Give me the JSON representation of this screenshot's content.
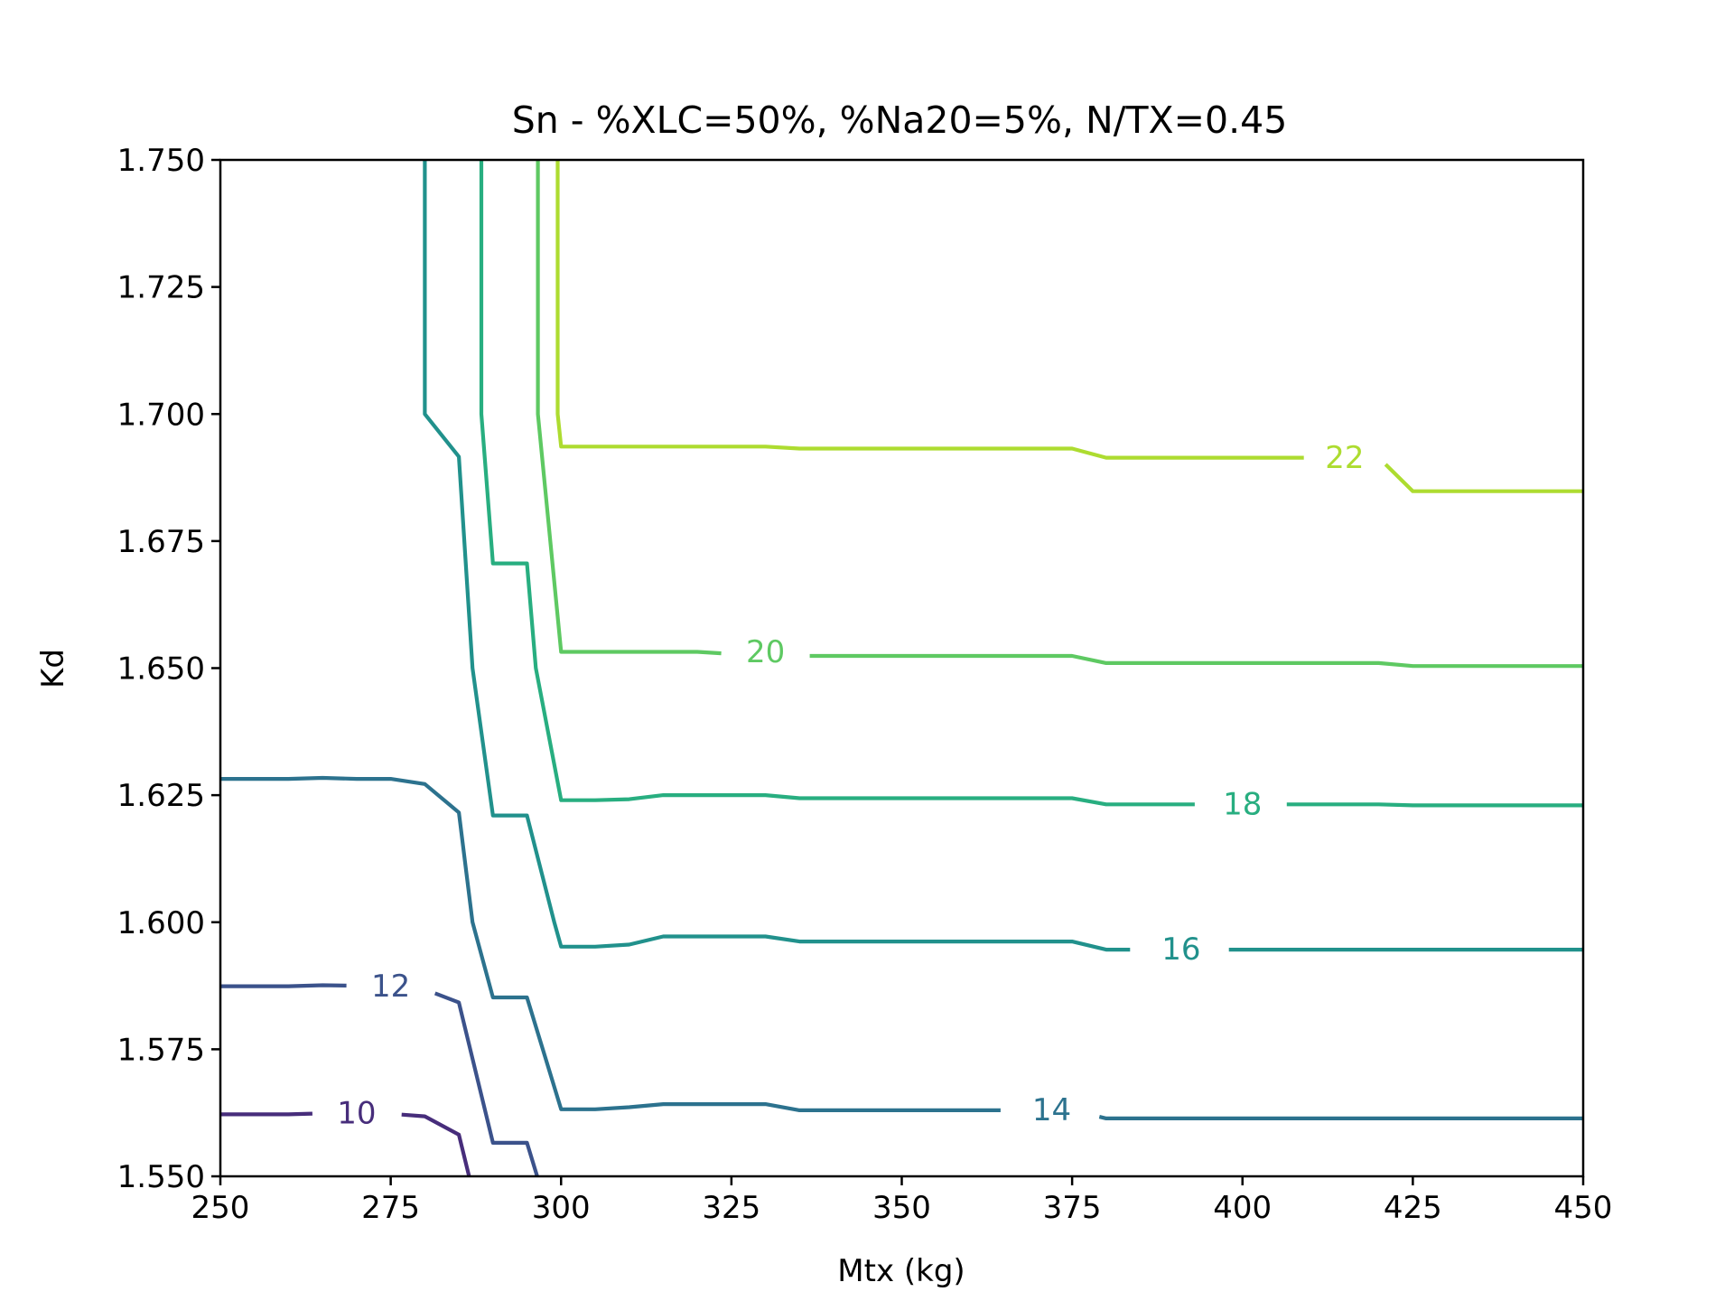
{
  "chart_data": {
    "type": "contour",
    "title": "Sn - %XLC=50%, %Na20=5%, N/TX=0.45",
    "xlabel": "Mtx (kg)",
    "ylabel": "Kd",
    "xlim": [
      250,
      450
    ],
    "ylim": [
      1.55,
      1.75
    ],
    "xticks": [
      "250",
      "275",
      "300",
      "325",
      "350",
      "375",
      "400",
      "425",
      "450"
    ],
    "yticks": [
      "1.550",
      "1.575",
      "1.600",
      "1.625",
      "1.650",
      "1.675",
      "1.700",
      "1.725",
      "1.750"
    ],
    "grid": false,
    "levels": [
      {
        "value": 10,
        "label": "10",
        "color": "#472d7b",
        "points": [
          [
            250,
            1.5622
          ],
          [
            260,
            1.5622
          ],
          [
            265,
            1.5624
          ],
          [
            270,
            1.5623
          ],
          [
            275,
            1.5623
          ],
          [
            280,
            1.5618
          ],
          [
            285,
            1.5582
          ],
          [
            286.5,
            1.55
          ]
        ],
        "label_pos": [
          270,
          1.5625
        ],
        "gaps": [
          [
            263.5,
            276.6
          ]
        ]
      },
      {
        "value": 12,
        "label": "12",
        "color": "#3b528b",
        "points": [
          [
            250,
            1.5874
          ],
          [
            260,
            1.5874
          ],
          [
            265,
            1.5876
          ],
          [
            270,
            1.5875
          ],
          [
            275,
            1.5875
          ],
          [
            280,
            1.5868
          ],
          [
            285,
            1.5842
          ],
          [
            290,
            1.5566
          ],
          [
            295,
            1.5566
          ],
          [
            296.5,
            1.55
          ]
        ],
        "label_pos": [
          275,
          1.5875
        ],
        "gaps": [
          [
            268.5,
            281.5
          ]
        ]
      },
      {
        "value": 14,
        "label": "14",
        "color": "#2c728e",
        "points": [
          [
            250,
            1.6282
          ],
          [
            260,
            1.6282
          ],
          [
            265,
            1.6284
          ],
          [
            270,
            1.6282
          ],
          [
            275,
            1.6282
          ],
          [
            280,
            1.6272
          ],
          [
            285,
            1.6216
          ],
          [
            287,
            1.6
          ],
          [
            290,
            1.5852
          ],
          [
            295,
            1.5852
          ],
          [
            300,
            1.5632
          ],
          [
            305,
            1.5632
          ],
          [
            310,
            1.5636
          ],
          [
            315,
            1.5642
          ],
          [
            320,
            1.5642
          ],
          [
            330,
            1.5642
          ],
          [
            335,
            1.563
          ],
          [
            375,
            1.563
          ],
          [
            380,
            1.5614
          ],
          [
            450,
            1.5614
          ]
        ],
        "label_pos": [
          372,
          1.5632
        ],
        "gaps": [
          [
            364.5,
            379
          ]
        ]
      },
      {
        "value": 16,
        "label": "16",
        "color": "#21918c",
        "points": [
          [
            280,
            1.75
          ],
          [
            280,
            1.7
          ],
          [
            285,
            1.6916
          ],
          [
            287,
            1.65
          ],
          [
            290,
            1.621
          ],
          [
            295,
            1.621
          ],
          [
            299,
            1.6
          ],
          [
            300,
            1.5952
          ],
          [
            305,
            1.5952
          ],
          [
            310,
            1.5956
          ],
          [
            315,
            1.5972
          ],
          [
            320,
            1.5972
          ],
          [
            330,
            1.5972
          ],
          [
            335,
            1.5962
          ],
          [
            375,
            1.5962
          ],
          [
            380,
            1.5946
          ],
          [
            450,
            1.5946
          ]
        ],
        "label_pos": [
          391,
          1.5948
        ],
        "gaps": [
          [
            383.5,
            398
          ]
        ]
      },
      {
        "value": 18,
        "label": "18",
        "color": "#28ae80",
        "points": [
          [
            288.3,
            1.75
          ],
          [
            288.3,
            1.7
          ],
          [
            290,
            1.6706
          ],
          [
            295,
            1.6706
          ],
          [
            296.3,
            1.65
          ],
          [
            300,
            1.624
          ],
          [
            305,
            1.624
          ],
          [
            310,
            1.6242
          ],
          [
            315,
            1.625
          ],
          [
            330,
            1.625
          ],
          [
            335,
            1.6244
          ],
          [
            375,
            1.6244
          ],
          [
            380,
            1.6232
          ],
          [
            420,
            1.6232
          ],
          [
            425,
            1.623
          ],
          [
            450,
            1.623
          ]
        ],
        "label_pos": [
          400,
          1.6233
        ],
        "gaps": [
          [
            393,
            406.5
          ]
        ]
      },
      {
        "value": 20,
        "label": "20",
        "color": "#5ec962",
        "points": [
          [
            296.6,
            1.75
          ],
          [
            296.6,
            1.7
          ],
          [
            300,
            1.6532
          ],
          [
            305,
            1.6532
          ],
          [
            320,
            1.6532
          ],
          [
            330,
            1.6524
          ],
          [
            375,
            1.6524
          ],
          [
            380,
            1.651
          ],
          [
            420,
            1.651
          ],
          [
            425,
            1.6504
          ],
          [
            450,
            1.6504
          ]
        ],
        "label_pos": [
          330,
          1.6533
        ],
        "gaps": [
          [
            323.5,
            336.5
          ]
        ]
      },
      {
        "value": 22,
        "label": "22",
        "color": "#addc30",
        "points": [
          [
            299.5,
            1.75
          ],
          [
            299.5,
            1.7
          ],
          [
            300,
            1.6936
          ],
          [
            320,
            1.6936
          ],
          [
            330,
            1.6936
          ],
          [
            335,
            1.6932
          ],
          [
            375,
            1.6932
          ],
          [
            380,
            1.6914
          ],
          [
            420,
            1.6914
          ],
          [
            425,
            1.6848
          ],
          [
            450,
            1.6848
          ]
        ],
        "label_pos": [
          415,
          1.6915
        ],
        "gaps": [
          [
            409,
            421
          ]
        ]
      }
    ]
  }
}
